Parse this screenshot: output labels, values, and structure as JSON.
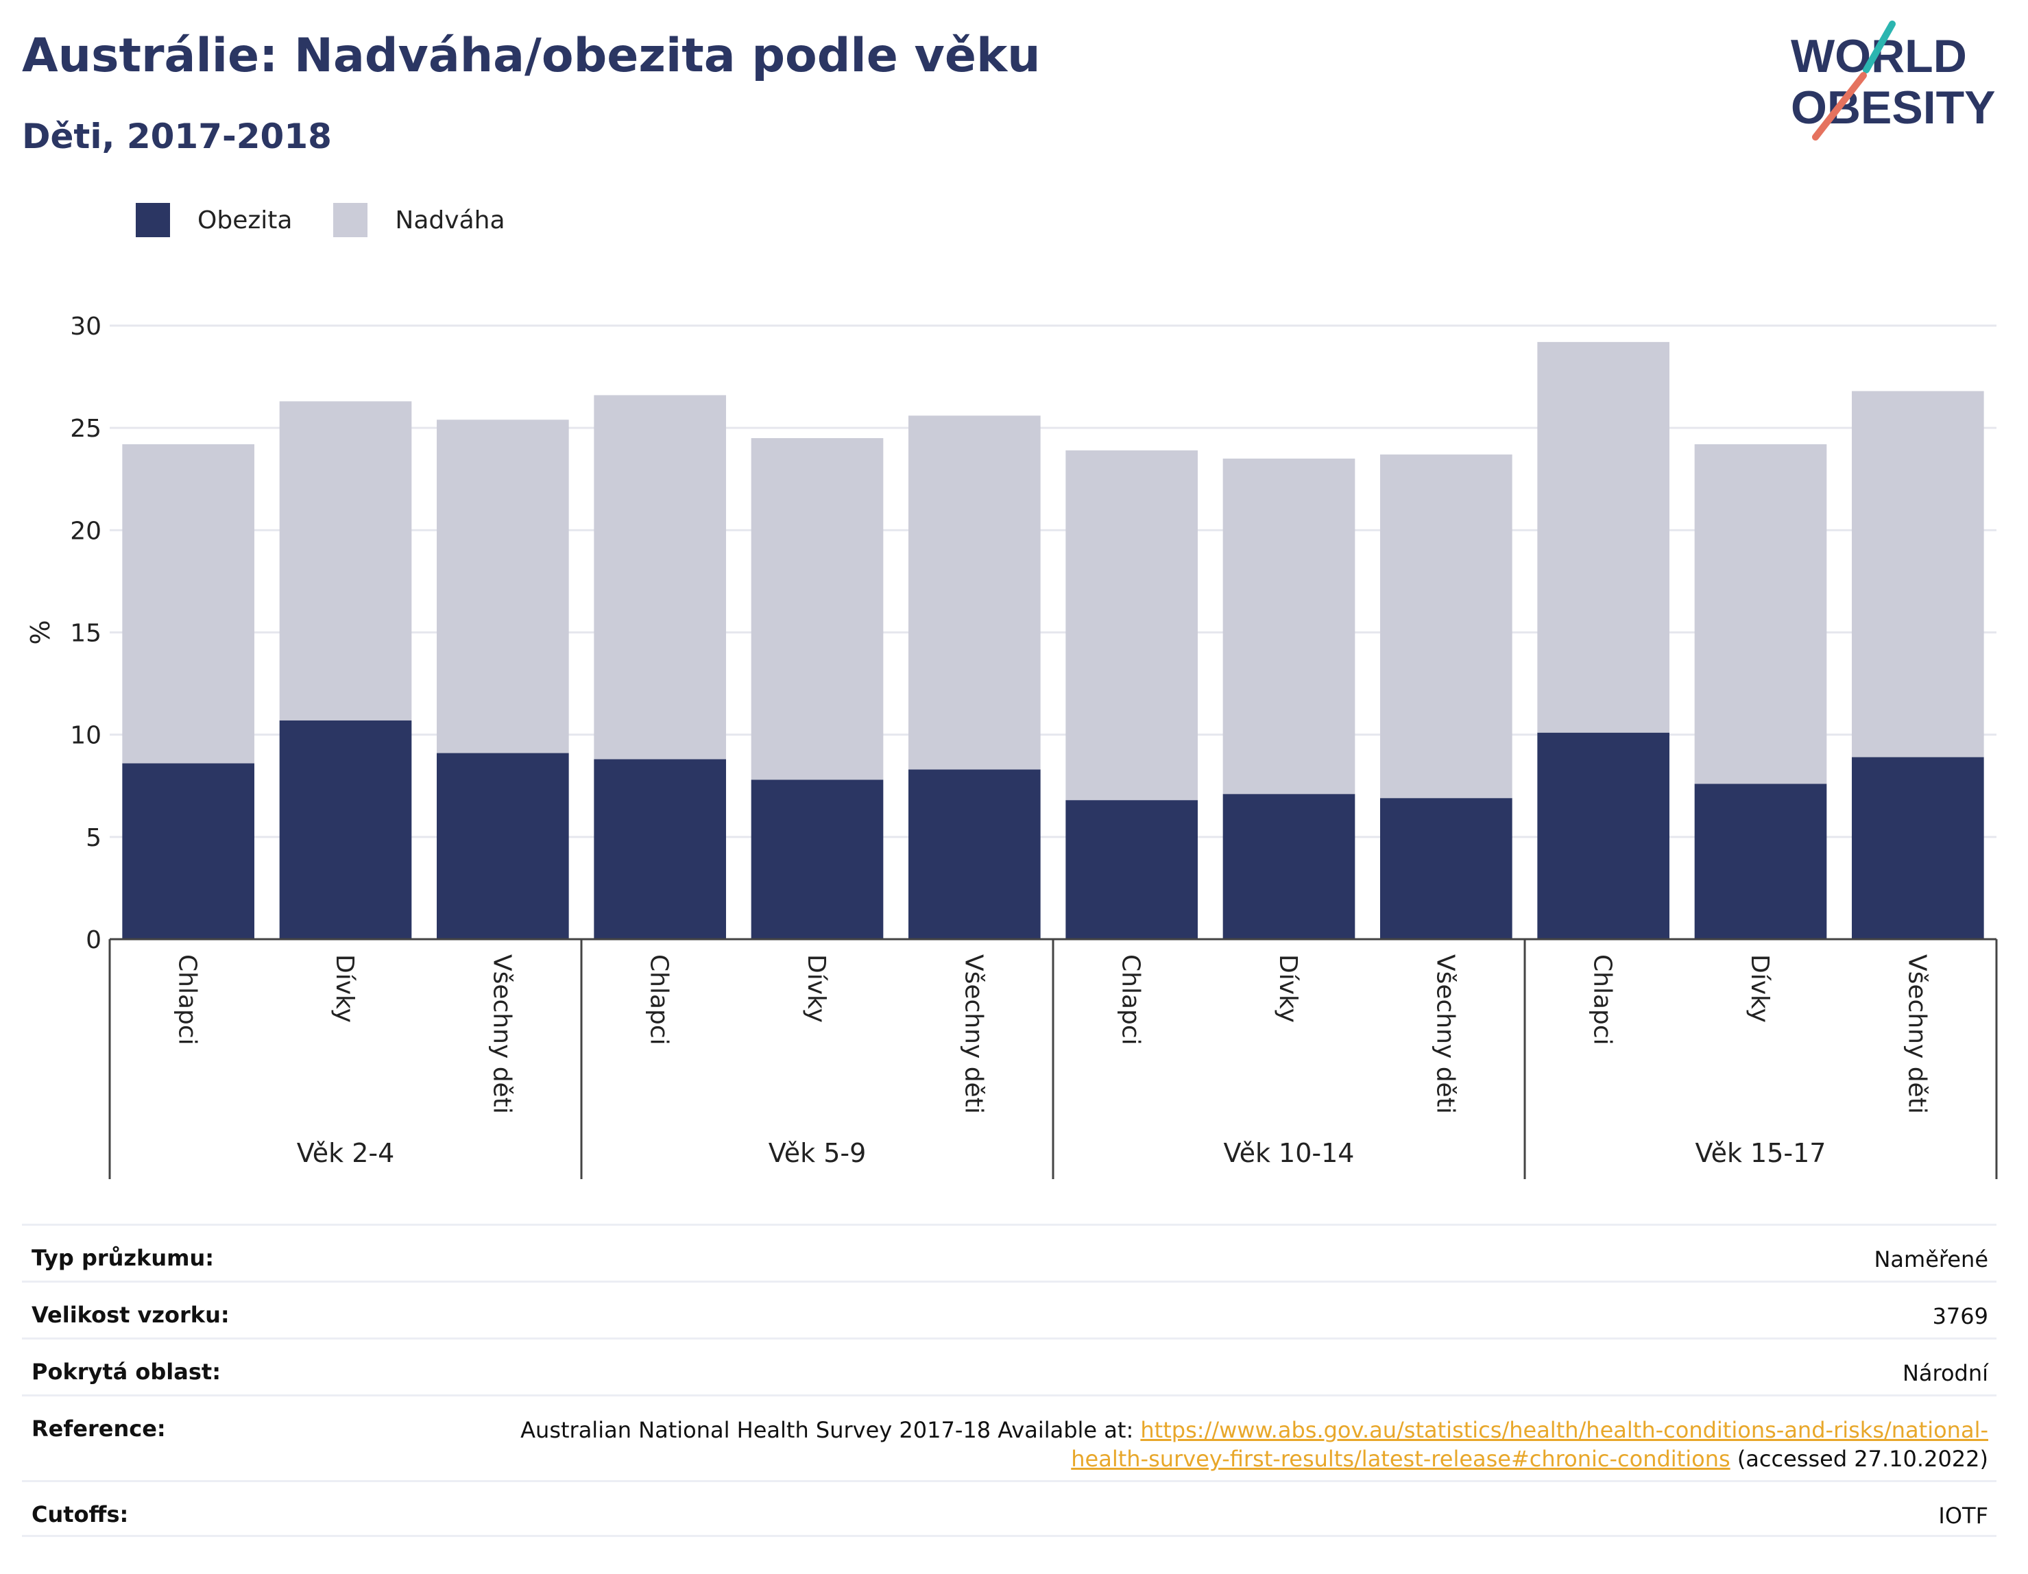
{
  "header": {
    "title": "Austrálie: Nadváha/obezita podle věku",
    "subtitle": "Děti, 2017-2018",
    "logo_line1": "WORLD",
    "logo_line2": "OBESITY"
  },
  "legend": [
    {
      "label": "Obezita",
      "color": "#2b3663"
    },
    {
      "label": "Nadváha",
      "color": "#cbccd8"
    }
  ],
  "chart_data": {
    "type": "bar",
    "stacked": true,
    "ylabel": "%",
    "ylim": [
      0,
      30
    ],
    "yticks": [
      0,
      5,
      10,
      15,
      20,
      25,
      30
    ],
    "groups": [
      {
        "label": "Věk 2-4",
        "categories": [
          "Chlapci",
          "Dívky",
          "Všechny děti"
        ]
      },
      {
        "label": "Věk 5-9",
        "categories": [
          "Chlapci",
          "Dívky",
          "Všechny děti"
        ]
      },
      {
        "label": "Věk 10-14",
        "categories": [
          "Chlapci",
          "Dívky",
          "Všechny děti"
        ]
      },
      {
        "label": "Věk 15-17",
        "categories": [
          "Chlapci",
          "Dívky",
          "Všechny děti"
        ]
      }
    ],
    "series": [
      {
        "name": "Obezita",
        "color": "#2b3663",
        "values": [
          8.6,
          10.7,
          9.1,
          8.8,
          7.8,
          8.3,
          6.8,
          7.1,
          6.9,
          10.1,
          7.6,
          8.9
        ]
      },
      {
        "name": "Nadváha",
        "color": "#cbccd8",
        "values": [
          15.6,
          15.6,
          16.3,
          17.8,
          16.7,
          17.3,
          17.1,
          16.4,
          16.8,
          19.1,
          16.6,
          17.9
        ]
      }
    ],
    "grid": true,
    "legend_position": "top-left"
  },
  "info": {
    "survey_type_label": "Typ průzkumu:",
    "survey_type_value": "Naměřené",
    "sample_size_label": "Velikost vzorku:",
    "sample_size_value": "3769",
    "coverage_label": "Pokrytá oblast:",
    "coverage_value": "Národní",
    "reference_label": "Reference:",
    "reference_text": "Australian National Health Survey 2017-18 Available at: ",
    "reference_link_1": "https://www.abs.gov.au/statistics/health/health-conditions-and-risks/national-",
    "reference_link_2": "health-survey-first-results/latest-release#chronic-conditions",
    "reference_accessed": " (accessed 27.10.2022)",
    "cutoffs_label": "Cutoffs:",
    "cutoffs_value": "IOTF"
  }
}
